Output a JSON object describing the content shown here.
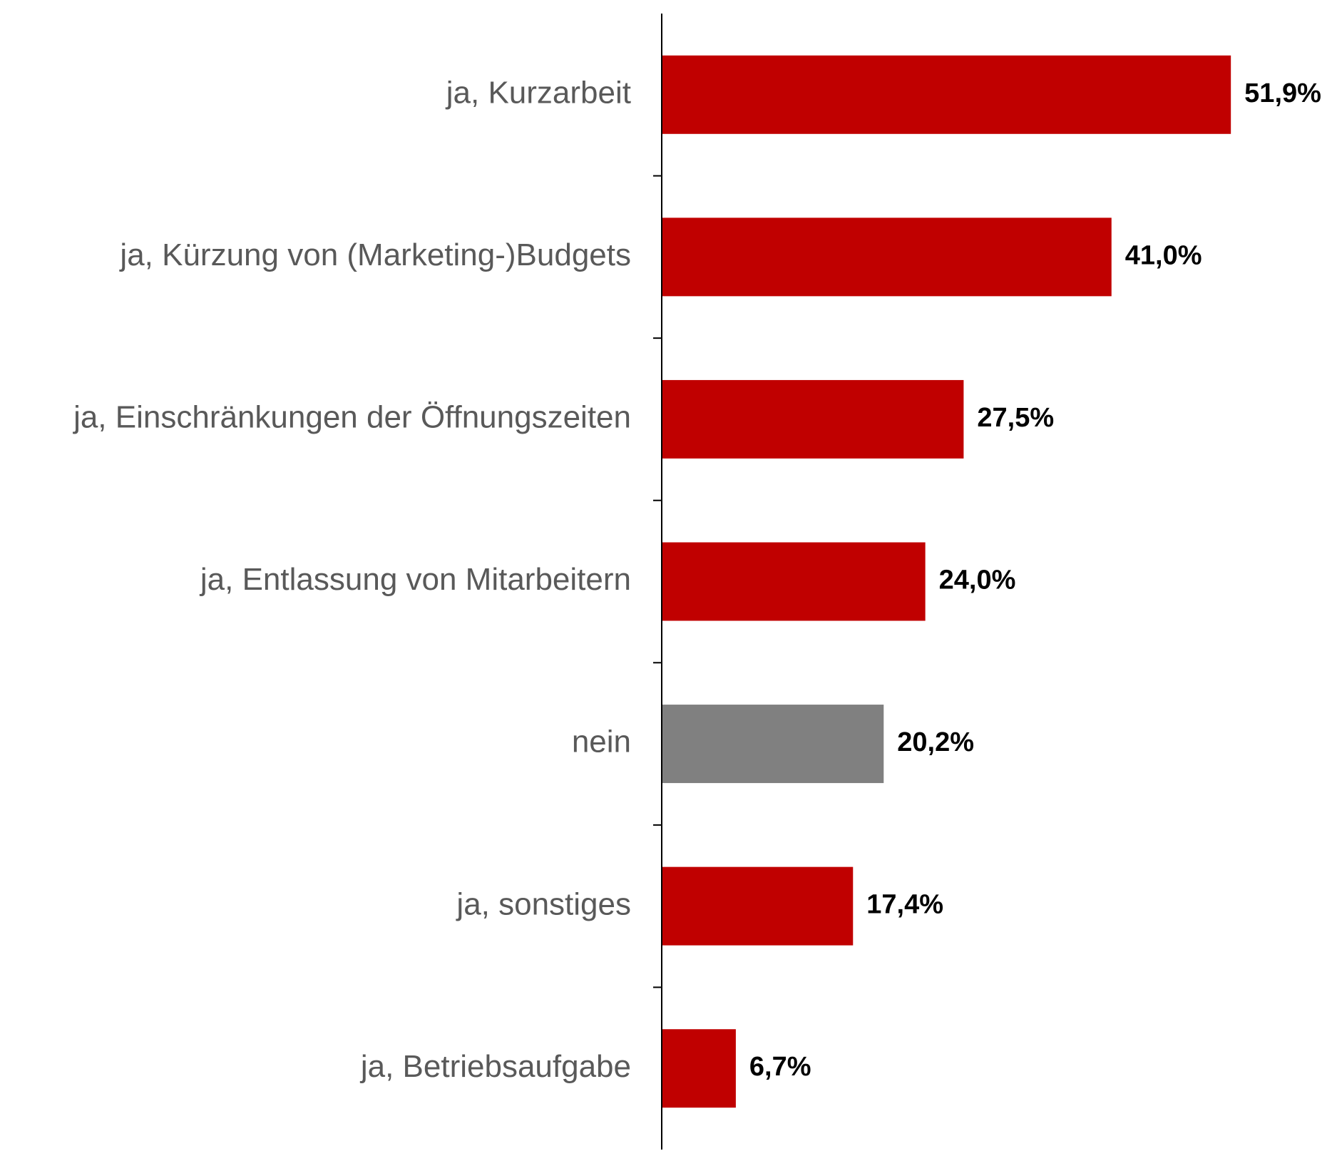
{
  "chart_data": {
    "type": "hbar",
    "categories": [
      "ja, Kurzarbeit",
      "ja, Kürzung von (Marketing-)Budgets",
      "ja, Einschränkungen der Öffnungszeiten",
      "ja, Entlassung von Mitarbeitern",
      "nein",
      "ja, sonstiges",
      "ja, Betriebsaufgabe"
    ],
    "values": [
      51.9,
      41.0,
      27.5,
      24.0,
      20.2,
      17.4,
      6.7
    ],
    "value_labels": [
      "51,9%",
      "41,0%",
      "27,5%",
      "24,0%",
      "20,2%",
      "17,4%",
      "6,7%"
    ],
    "colors": [
      "#c00000",
      "#c00000",
      "#c00000",
      "#c00000",
      "#808080",
      "#c00000",
      "#c00000"
    ]
  }
}
